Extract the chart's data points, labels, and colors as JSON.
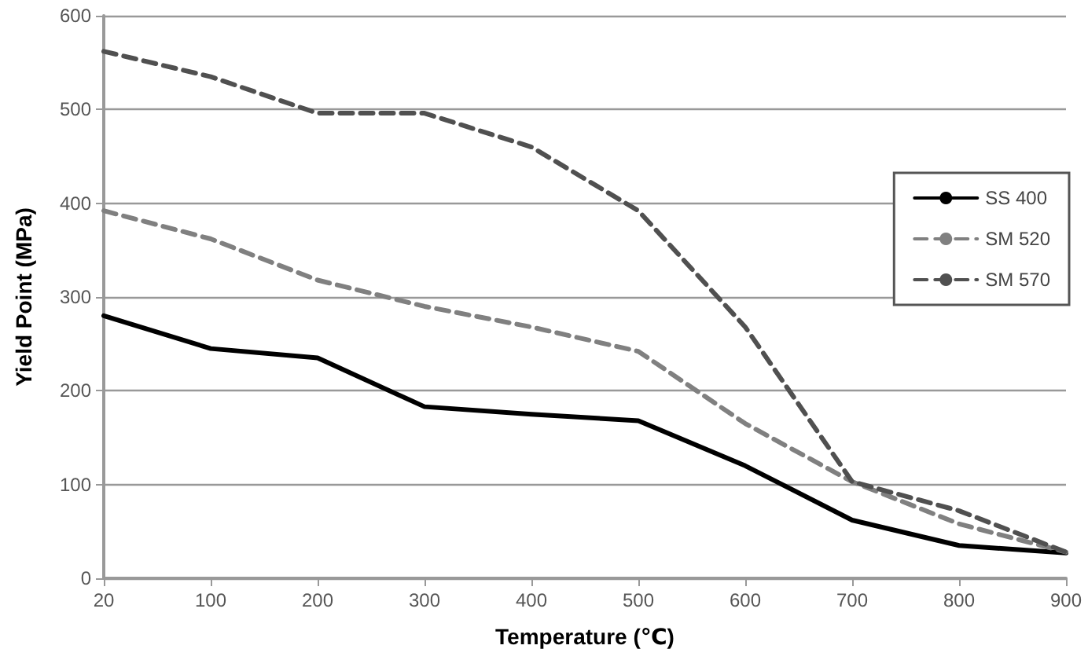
{
  "chart_data": {
    "type": "line",
    "xlabel": "Temperature (℃)",
    "ylabel": "Yield Point (MPa)",
    "categories": [
      "20",
      "100",
      "200",
      "300",
      "400",
      "500",
      "600",
      "700",
      "800",
      "900"
    ],
    "series": [
      {
        "name": "SS 400",
        "color": "#000000",
        "line_style": "solid",
        "values": [
          280,
          245,
          235,
          183,
          175,
          168,
          120,
          62,
          35,
          27
        ]
      },
      {
        "name": "SM 520",
        "color": "#808080",
        "line_style": "dashed",
        "values": [
          392,
          362,
          318,
          290,
          268,
          242,
          165,
          103,
          58,
          28
        ]
      },
      {
        "name": "SM 570",
        "color": "#505050",
        "line_style": "dashed",
        "values": [
          562,
          535,
          496,
          496,
          460,
          392,
          268,
          103,
          72,
          28
        ]
      }
    ],
    "ylim": [
      0,
      600
    ],
    "yticks": [
      0,
      100,
      200,
      300,
      400,
      500,
      600
    ],
    "grid": "y",
    "legend": "right",
    "marker": "none"
  }
}
